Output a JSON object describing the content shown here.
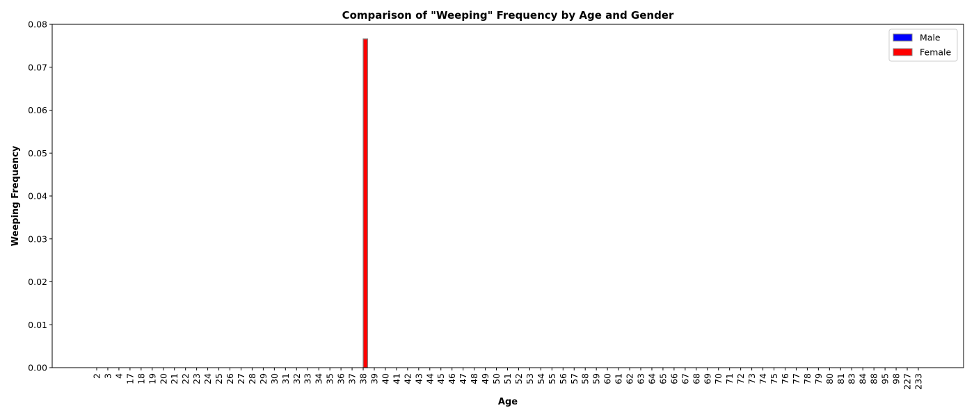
{
  "chart_data": {
    "type": "bar",
    "title": "Comparison of \"Weeping\" Frequency by Age and Gender",
    "xlabel": "Age",
    "ylabel": "Weeping Frequency",
    "ylim": [
      0,
      0.08
    ],
    "yticks": [
      "0.00",
      "0.01",
      "0.02",
      "0.03",
      "0.04",
      "0.05",
      "0.06",
      "0.07",
      "0.08"
    ],
    "grid": false,
    "legend_position": "top-right",
    "categories": [
      "2",
      "3",
      "4",
      "17",
      "18",
      "19",
      "20",
      "21",
      "22",
      "23",
      "24",
      "25",
      "26",
      "27",
      "28",
      "29",
      "30",
      "31",
      "32",
      "33",
      "34",
      "35",
      "36",
      "37",
      "38",
      "39",
      "40",
      "41",
      "42",
      "43",
      "44",
      "45",
      "46",
      "47",
      "48",
      "49",
      "50",
      "51",
      "52",
      "53",
      "54",
      "55",
      "56",
      "57",
      "58",
      "59",
      "60",
      "61",
      "62",
      "63",
      "64",
      "65",
      "66",
      "67",
      "68",
      "69",
      "70",
      "71",
      "72",
      "73",
      "74",
      "75",
      "76",
      "77",
      "78",
      "79",
      "80",
      "81",
      "83",
      "84",
      "88",
      "95",
      "98",
      "227",
      "233"
    ],
    "series": [
      {
        "name": "Male",
        "color": "#0000ff",
        "values": [
          0,
          0,
          0,
          0,
          0,
          0,
          0,
          0,
          0,
          0,
          0,
          0,
          0,
          0,
          0,
          0,
          0,
          0,
          0,
          0,
          0,
          0,
          0,
          0,
          0,
          0,
          0,
          0,
          0,
          0,
          0,
          0,
          0,
          0,
          0,
          0,
          0,
          0,
          0,
          0,
          0,
          0,
          0,
          0,
          0,
          0,
          0,
          0,
          0,
          0,
          0,
          0,
          0,
          0,
          0,
          0,
          0,
          0,
          0,
          0,
          0,
          0,
          0,
          0,
          0,
          0,
          0,
          0,
          0,
          0,
          0,
          0,
          0,
          0,
          0
        ]
      },
      {
        "name": "Female",
        "color": "#ff0000",
        "values": [
          0,
          0,
          0,
          0,
          0,
          0,
          0,
          0,
          0,
          0,
          0,
          0,
          0,
          0,
          0,
          0,
          0,
          0,
          0,
          0,
          0,
          0,
          0,
          0,
          0.0766,
          0,
          0,
          0,
          0,
          0,
          0,
          0,
          0,
          0,
          0,
          0,
          0,
          0,
          0,
          0,
          0,
          0,
          0,
          0,
          0,
          0,
          0,
          0,
          0,
          0,
          0,
          0,
          0,
          0,
          0,
          0,
          0,
          0,
          0,
          0,
          0,
          0,
          0,
          0,
          0,
          0,
          0,
          0,
          0,
          0,
          0,
          0,
          0,
          0,
          0
        ]
      }
    ]
  }
}
